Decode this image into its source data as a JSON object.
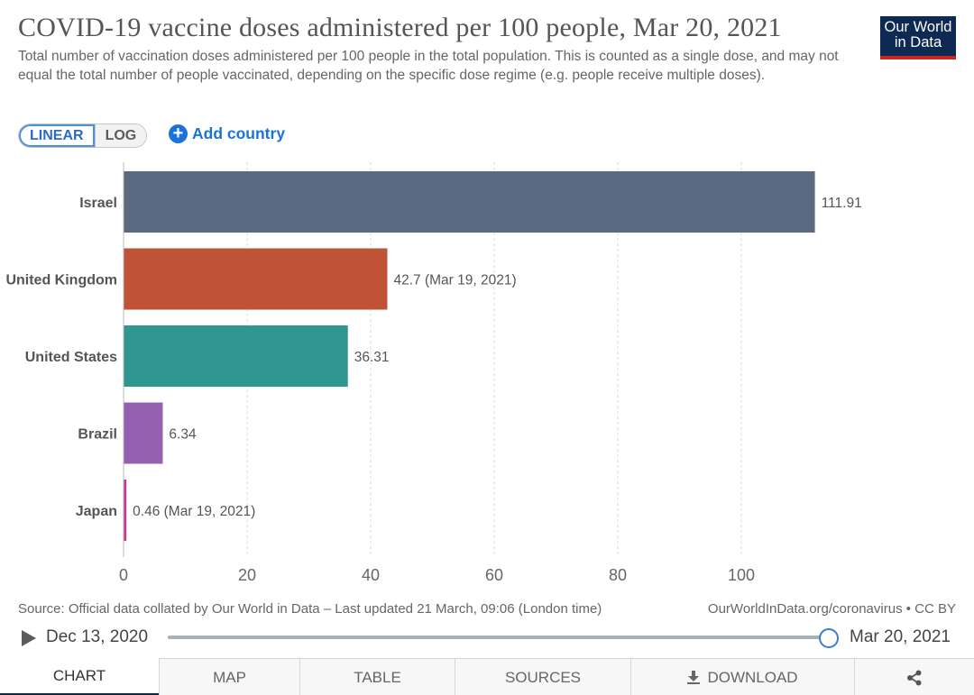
{
  "header": {
    "title": "COVID-19 vaccine doses administered per 100 people, Mar 20, 2021",
    "subtitle": "Total number of vaccination doses administered per 100 people in the total population. This is counted as a single dose, and may not equal the total number of people vaccinated, depending on the specific dose regime (e.g. people receive multiple doses).",
    "logo_line1": "Our World",
    "logo_line2": "in Data"
  },
  "controls": {
    "linear_label": "LINEAR",
    "log_label": "LOG",
    "add_country_label": "Add country"
  },
  "chart_data": {
    "type": "bar",
    "orientation": "horizontal",
    "title": "COVID-19 vaccine doses administered per 100 people, Mar 20, 2021",
    "xlabel": "",
    "ylabel": "",
    "xlim": [
      0,
      120
    ],
    "x_ticks": [
      0,
      20,
      40,
      60,
      80,
      100
    ],
    "grid": true,
    "categories": [
      "Israel",
      "United Kingdom",
      "United States",
      "Brazil",
      "Japan"
    ],
    "values": [
      111.91,
      42.7,
      36.31,
      6.34,
      0.46
    ],
    "value_labels": [
      "111.91",
      "42.7 (Mar 19, 2021)",
      "36.31",
      "6.34",
      "0.46 (Mar 19, 2021)"
    ],
    "colors": [
      "#5b6a80",
      "#c05235",
      "#2f9690",
      "#9460b0",
      "#d1358e"
    ]
  },
  "footer": {
    "source": "Source: Official data collated by Our World in Data – Last updated 21 March, 09:06 (London time)",
    "license": "OurWorldInData.org/coronavirus • CC BY"
  },
  "timeline": {
    "start_label": "Dec 13, 2020",
    "end_label": "Mar 20, 2021",
    "position": 1.0
  },
  "tabs": [
    {
      "label": "CHART"
    },
    {
      "label": "MAP"
    },
    {
      "label": "TABLE"
    },
    {
      "label": "SOURCES"
    },
    {
      "label": "DOWNLOAD"
    }
  ]
}
